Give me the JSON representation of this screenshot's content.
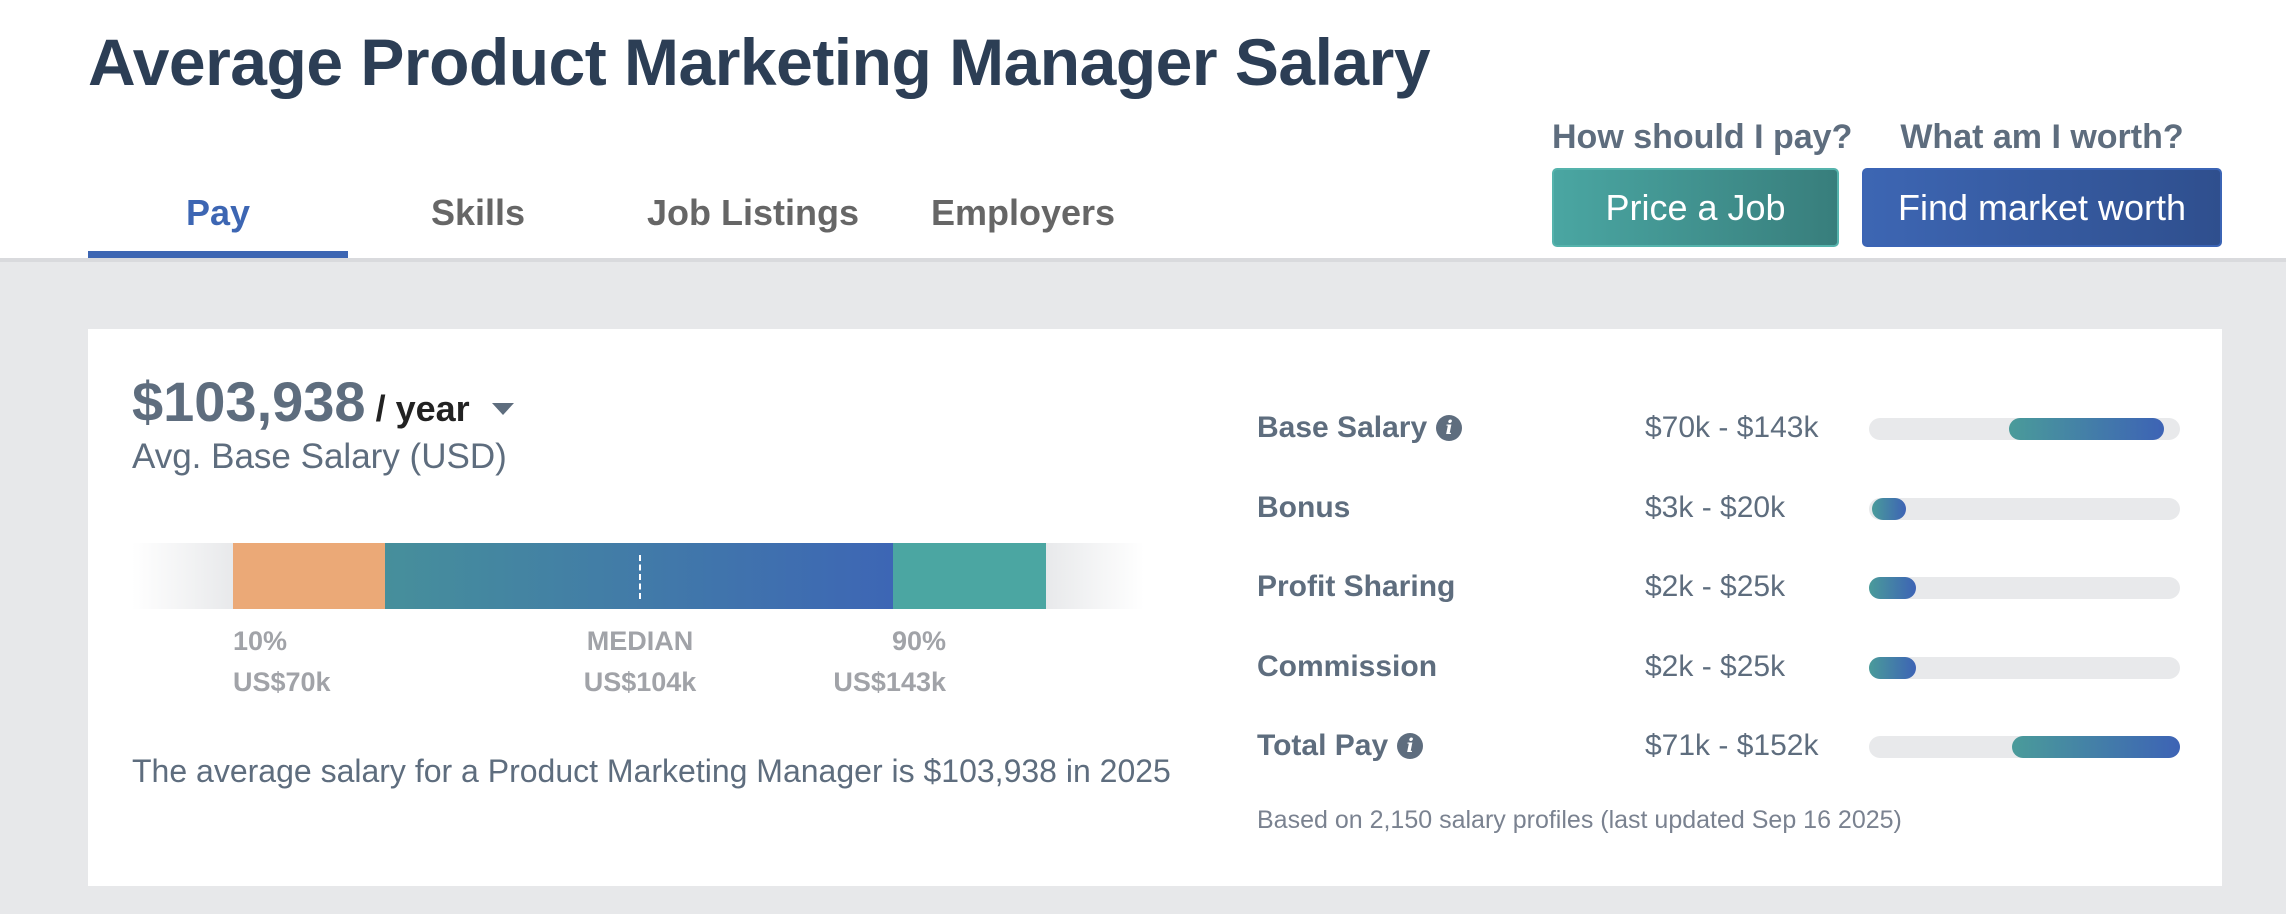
{
  "page": {
    "title": "Average Product Marketing Manager Salary"
  },
  "tabs": [
    {
      "label": "Pay",
      "active": true
    },
    {
      "label": "Skills",
      "active": false
    },
    {
      "label": "Job Listings",
      "active": false
    },
    {
      "label": "Employers",
      "active": false
    }
  ],
  "cta": {
    "pay_question": "How should I pay?",
    "price_job_label": "Price a Job",
    "worth_question": "What am I worth?",
    "market_worth_label": "Find market worth"
  },
  "summary": {
    "amount": "$103,938",
    "period": "/ year",
    "subtitle": "Avg. Base Salary (USD)",
    "description": "The average salary for a Product Marketing Manager is $103,938 in 2025"
  },
  "range": {
    "p10_label": "10%",
    "p10_value": "US$70k",
    "median_label": "MEDIAN",
    "median_value": "US$104k",
    "p90_label": "90%",
    "p90_value": "US$143k"
  },
  "breakdown": {
    "rows": [
      {
        "label": "Base Salary",
        "info": true,
        "range": "$70k - $143k",
        "fill_start": 0.45,
        "fill_end": 0.95
      },
      {
        "label": "Bonus",
        "info": false,
        "range": "$3k - $20k",
        "fill_start": 0.01,
        "fill_end": 0.12
      },
      {
        "label": "Profit Sharing",
        "info": false,
        "range": "$2k - $25k",
        "fill_start": 0.0,
        "fill_end": 0.15
      },
      {
        "label": "Commission",
        "info": false,
        "range": "$2k - $25k",
        "fill_start": 0.0,
        "fill_end": 0.15
      },
      {
        "label": "Total Pay",
        "info": true,
        "range": "$71k - $152k",
        "fill_start": 0.46,
        "fill_end": 1.0
      }
    ],
    "footnote": "Based on 2,150 salary profiles (last updated Sep 16 2025)"
  },
  "colors": {
    "accent_blue": "#3d66b3",
    "teal": "#4aa6a2",
    "orange": "#eba977",
    "title": "#2c3e55",
    "text_slate": "#5e6d7e"
  }
}
